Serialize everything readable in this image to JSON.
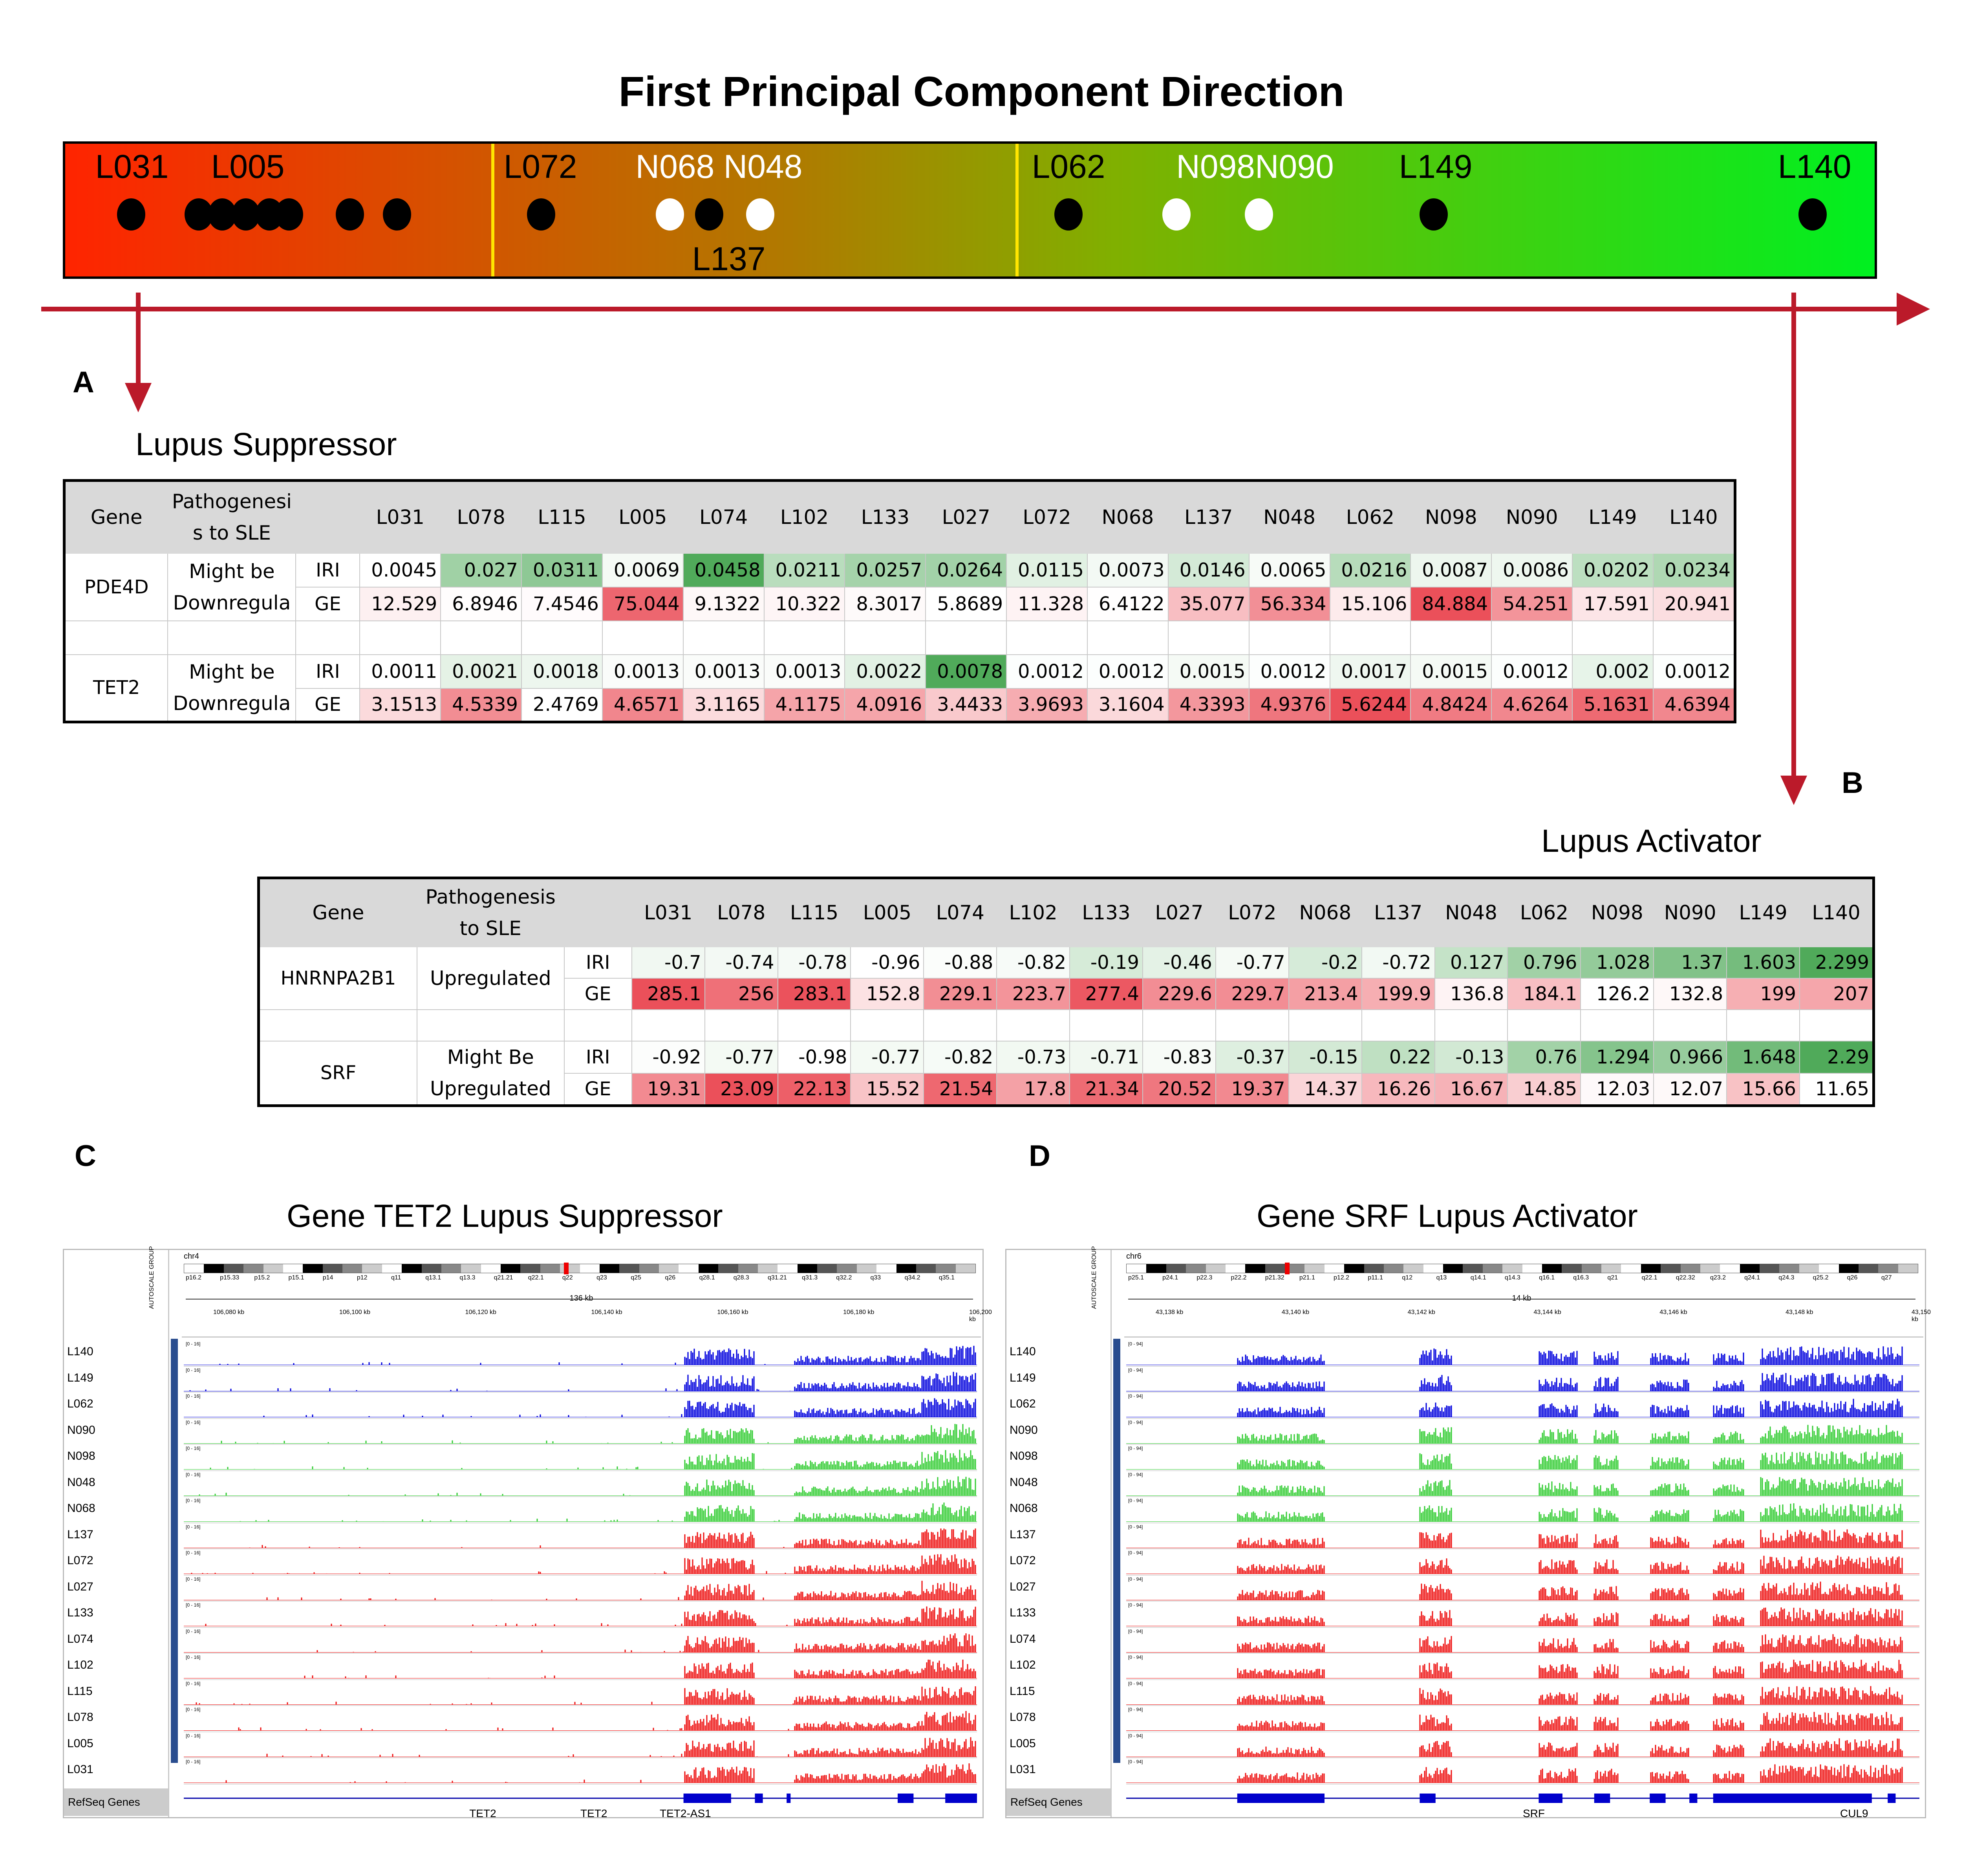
{
  "title": "First Principal Component Direction",
  "pc_bar": {
    "labels_top": [
      "L031",
      "L005",
      "L072",
      "N068 N048",
      "L062",
      "N098N090",
      "L149",
      "L140"
    ],
    "label_bottom": "L137"
  },
  "panel_a": {
    "letter": "A",
    "title": "Lupus Suppressor",
    "header": [
      "Gene",
      "Pathogenesi s to SLE",
      "",
      "L031",
      "L078",
      "L115",
      "L005",
      "L074",
      "L102",
      "L133",
      "L027",
      "L072",
      "N068",
      "L137",
      "N048",
      "L062",
      "N098",
      "N090",
      "L149",
      "L140"
    ],
    "genes": [
      {
        "gene": "PDE4D",
        "path1": "Might be",
        "path2": "Downregula",
        "iri": [
          "0.0045",
          "0.027",
          "0.0311",
          "0.0069",
          "0.0458",
          "0.0211",
          "0.0257",
          "0.0264",
          "0.0115",
          "0.0073",
          "0.0146",
          "0.0065",
          "0.0216",
          "0.0087",
          "0.0086",
          "0.0202",
          "0.0234"
        ],
        "ge": [
          "12.529",
          "6.8946",
          "7.4546",
          "75.044",
          "9.1322",
          "10.322",
          "8.3017",
          "5.8689",
          "11.328",
          "6.4122",
          "35.077",
          "56.334",
          "15.106",
          "84.884",
          "54.251",
          "17.591",
          "20.941"
        ]
      },
      {
        "gene": "TET2",
        "path1": "Might be",
        "path2": "Downregula",
        "iri": [
          "0.0011",
          "0.0021",
          "0.0018",
          "0.0013",
          "0.0013",
          "0.0013",
          "0.0022",
          "0.0078",
          "0.0012",
          "0.0012",
          "0.0015",
          "0.0012",
          "0.0017",
          "0.0015",
          "0.0012",
          "0.002",
          "0.0012"
        ],
        "ge": [
          "3.1513",
          "4.5339",
          "2.4769",
          "4.6571",
          "3.1165",
          "4.1175",
          "4.0916",
          "3.4433",
          "3.9693",
          "3.1604",
          "4.3393",
          "4.9376",
          "5.6244",
          "4.8424",
          "4.6264",
          "5.1631",
          "4.6394"
        ]
      }
    ]
  },
  "panel_b": {
    "letter": "B",
    "title": "Lupus Activator",
    "header": [
      "Gene",
      "Pathogenesis to SLE",
      "",
      "L031",
      "L078",
      "L115",
      "L005",
      "L074",
      "L102",
      "L133",
      "L027",
      "L072",
      "N068",
      "L137",
      "N048",
      "L062",
      "N098",
      "N090",
      "L149",
      "L140"
    ],
    "genes": [
      {
        "gene": "HNRNPA2B1",
        "path1": "Upregulated",
        "path2": "",
        "iri": [
          "-0.7",
          "-0.74",
          "-0.78",
          "-0.96",
          "-0.88",
          "-0.82",
          "-0.19",
          "-0.46",
          "-0.77",
          "-0.2",
          "-0.72",
          "0.127",
          "0.796",
          "1.028",
          "1.37",
          "1.603",
          "2.299"
        ],
        "ge": [
          "285.1",
          "256",
          "283.1",
          "152.8",
          "229.1",
          "223.7",
          "277.4",
          "229.6",
          "229.7",
          "213.4",
          "199.9",
          "136.8",
          "184.1",
          "126.2",
          "132.8",
          "199",
          "207"
        ]
      },
      {
        "gene": "SRF",
        "path1": "Might Be",
        "path2": "Upregulated",
        "iri": [
          "-0.92",
          "-0.77",
          "-0.98",
          "-0.77",
          "-0.82",
          "-0.73",
          "-0.71",
          "-0.83",
          "-0.37",
          "-0.15",
          "0.22",
          "-0.13",
          "0.76",
          "1.294",
          "0.966",
          "1.648",
          "2.29"
        ],
        "ge": [
          "19.31",
          "23.09",
          "22.13",
          "15.52",
          "21.54",
          "17.8",
          "21.34",
          "20.52",
          "19.37",
          "14.37",
          "16.26",
          "16.67",
          "14.85",
          "12.03",
          "12.07",
          "15.66",
          "11.65"
        ]
      }
    ]
  },
  "panel_c": {
    "letter": "C",
    "title": "Gene TET2 Lupus Suppressor",
    "chrom": "chr4",
    "bands": [
      "p16.2",
      "p15.33",
      "p15.2",
      "p15.1",
      "p14",
      "p12",
      "q11",
      "q13.1",
      "q13.3",
      "q21.21",
      "q22.1",
      "q22",
      "q23",
      "q25",
      "q26",
      "q28.1",
      "q28.3",
      "q31.21",
      "q31.3",
      "q32.2",
      "q33",
      "q34.2",
      "q35.1"
    ],
    "span": "136 kb",
    "ticks": [
      "106,080 kb",
      "106,100 kb",
      "106,120 kb",
      "106,140 kb",
      "106,160 kb",
      "106,180 kb",
      "106,200 kb"
    ],
    "genes": [
      "TET2",
      "TET2",
      "TET2-AS1"
    ]
  },
  "panel_d": {
    "letter": "D",
    "title": "Gene SRF Lupus Activator",
    "chrom": "chr6",
    "bands": [
      "p25.1",
      "p24.1",
      "p22.3",
      "p22.2",
      "p21.32",
      "p21.1",
      "p12.2",
      "p11.1",
      "q12",
      "q13",
      "q14.1",
      "q14.3",
      "q16.1",
      "q16.3",
      "q21",
      "q22.1",
      "q22.32",
      "q23.2",
      "q24.1",
      "q24.3",
      "q25.2",
      "q26",
      "q27"
    ],
    "span": "14 kb",
    "ticks": [
      "43,138 kb",
      "43,140 kb",
      "43,142 kb",
      "43,144 kb",
      "43,146 kb",
      "43,148 kb",
      "43,150 kb"
    ],
    "genes": [
      "SRF",
      "CUL9"
    ]
  },
  "igv": {
    "samples": [
      "L140",
      "L149",
      "L062",
      "N090",
      "N098",
      "N048",
      "N068",
      "L137",
      "L072",
      "L027",
      "L133",
      "L074",
      "L102",
      "L115",
      "L078",
      "L005",
      "L031"
    ],
    "refseq_label": "RefSeq Genes",
    "range_label": "[0 - 16]",
    "range_label_d": "[0 - 94]",
    "vertical_label": "AUTOSCALE GROUP",
    "colors": {
      "blue": "#0000dd",
      "green": "#33cc33",
      "red": "#ee1111"
    }
  }
}
